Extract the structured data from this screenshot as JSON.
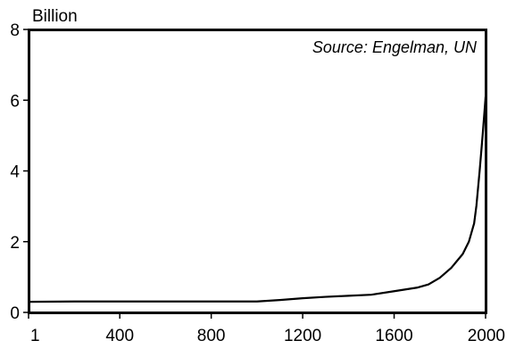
{
  "chart_data": {
    "type": "line",
    "ylabel": "Billion",
    "annotation": "Source: Engelman, UN",
    "x_ticks": [
      "1",
      "400",
      "800",
      "1200",
      "1600",
      "2000"
    ],
    "y_ticks": [
      "0",
      "2",
      "4",
      "6",
      "8"
    ],
    "xlim": [
      1,
      2000
    ],
    "ylim": [
      0,
      8
    ],
    "grid": false,
    "line_color": "#000000",
    "series": [
      {
        "x": [
          1,
          200,
          400,
          600,
          800,
          1000,
          1100,
          1200,
          1300,
          1400,
          1500,
          1600,
          1700,
          1750,
          1800,
          1850,
          1900,
          1927,
          1950,
          1960,
          1974,
          1987,
          1999,
          2000
        ],
        "y": [
          0.3,
          0.31,
          0.31,
          0.31,
          0.31,
          0.31,
          0.35,
          0.4,
          0.44,
          0.47,
          0.5,
          0.6,
          0.7,
          0.79,
          0.98,
          1.26,
          1.65,
          2.0,
          2.52,
          3.02,
          4.0,
          5.0,
          6.0,
          6.1
        ]
      }
    ]
  }
}
